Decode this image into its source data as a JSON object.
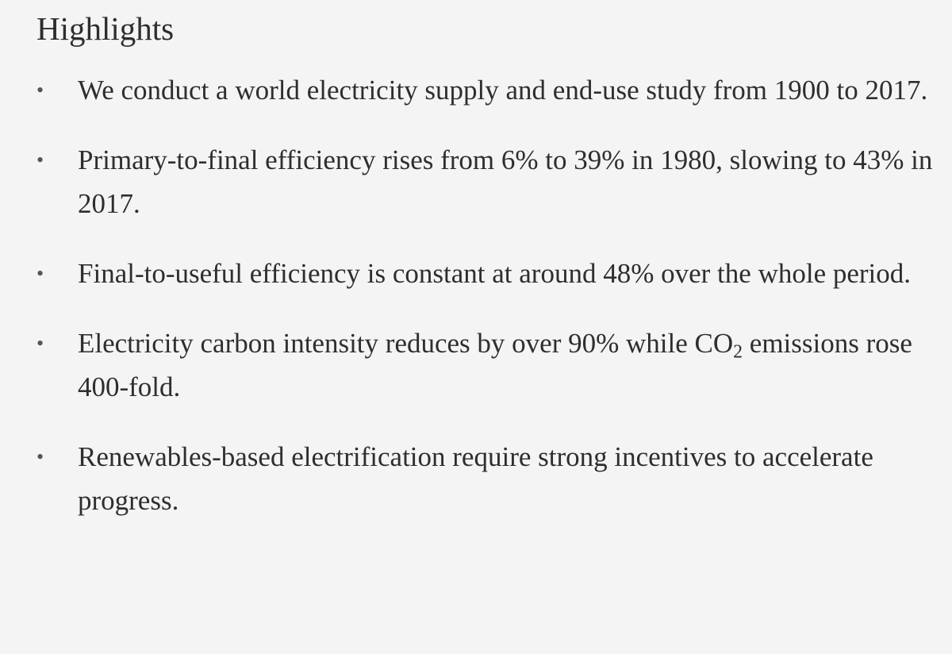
{
  "highlights": {
    "title": "Highlights",
    "bullet_glyph": "•",
    "items": [
      {
        "text": "We conduct a world electricity supply and end-use study from 1900 to 2017."
      },
      {
        "text": "Primary-to-final efficiency rises from 6% to 39% in 1980, slowing to 43% in 2017."
      },
      {
        "text": "Final-to-useful efficiency is constant at around 48% over the whole period."
      },
      {
        "text_before": "Electricity carbon intensity reduces by over 90% while CO",
        "subscript": "2",
        "text_after": " emissions rose 400-fold."
      },
      {
        "text": "Renewables-based electrification require strong incentives to accelerate progress."
      }
    ]
  }
}
